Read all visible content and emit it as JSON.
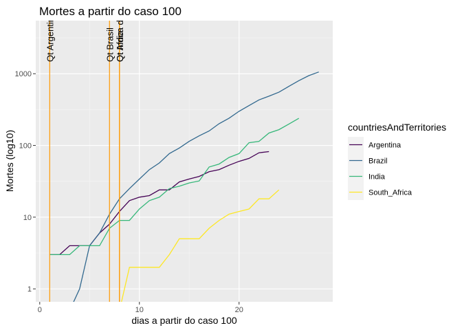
{
  "chart_data": {
    "type": "line",
    "title": "Mortes a partir do caso 100",
    "xlabel": "dias a partir do caso 100",
    "ylabel": "Mortes (log10)",
    "y_scale": "log10",
    "xlim": [
      -0.4,
      29.4
    ],
    "ylim": [
      0.66,
      5500
    ],
    "x_ticks": [
      0,
      10,
      20
    ],
    "x_tick_labels": [
      "0",
      "10",
      "20"
    ],
    "y_ticks": [
      1,
      10,
      100,
      1000
    ],
    "y_tick_labels": [
      "1",
      "10",
      "100",
      "1000"
    ],
    "grid": true,
    "legend": {
      "title": "countriesAndTerritories",
      "position": "right"
    },
    "series": [
      {
        "name": "Argentina",
        "color": "#440154",
        "x": [
          1,
          2,
          3,
          4,
          5,
          6,
          7,
          8,
          9,
          10,
          11,
          12,
          13,
          14,
          15,
          16,
          17,
          18,
          19,
          20,
          21,
          22,
          23
        ],
        "y": [
          3,
          3,
          4,
          4,
          4,
          6,
          8,
          12,
          17,
          19,
          20,
          24,
          24,
          31,
          34,
          37,
          43,
          46,
          53,
          60,
          66,
          79,
          82
        ]
      },
      {
        "name": "Brazil",
        "color": "#31688E",
        "x": [
          1,
          2,
          3,
          4,
          5,
          6,
          7,
          8,
          9,
          10,
          11,
          12,
          13,
          14,
          15,
          16,
          17,
          18,
          19,
          20,
          21,
          22,
          23,
          24,
          25,
          26,
          27,
          28
        ],
        "y": [
          0.5,
          0.5,
          0.5,
          1,
          4,
          6,
          11,
          18,
          25,
          34,
          46,
          57,
          77,
          92,
          114,
          136,
          159,
          201,
          240,
          299,
          359,
          432,
          486,
          553,
          667,
          800,
          941,
          1057
        ]
      },
      {
        "name": "India",
        "color": "#35B779",
        "x": [
          1,
          2,
          3,
          4,
          5,
          6,
          7,
          8,
          9,
          10,
          11,
          12,
          13,
          14,
          15,
          16,
          17,
          18,
          19,
          20,
          21,
          22,
          23,
          24,
          25,
          26
        ],
        "y": [
          3,
          3,
          3,
          4,
          4,
          4,
          7,
          9,
          9,
          13,
          17,
          19,
          25,
          27,
          30,
          32,
          50,
          55,
          68,
          77,
          109,
          114,
          149,
          166,
          199,
          239
        ]
      },
      {
        "name": "South_Africa",
        "color": "#FDE725",
        "x": [
          1,
          2,
          3,
          4,
          5,
          6,
          7,
          8,
          9,
          10,
          11,
          12,
          13,
          14,
          15,
          16,
          17,
          18,
          19,
          20,
          21,
          22,
          23,
          24
        ],
        "y": [
          0.5,
          0.5,
          0.5,
          0.5,
          0.5,
          0.5,
          0.5,
          0.5,
          2,
          2,
          2,
          2,
          3,
          5,
          5,
          5,
          7,
          9,
          11,
          12,
          13,
          18,
          18,
          24
        ]
      }
    ],
    "vlines": [
      {
        "x": 1,
        "label": "Qt Argentina",
        "color": "#FF9900"
      },
      {
        "x": 7,
        "label": "Qt Brasil",
        "color": "#FF9900"
      },
      {
        "x": 8,
        "label": "Qt Africa do Sul",
        "color": "#FF9900"
      },
      {
        "x": 8,
        "label": "Qt India",
        "color": "#FF9900"
      }
    ]
  }
}
